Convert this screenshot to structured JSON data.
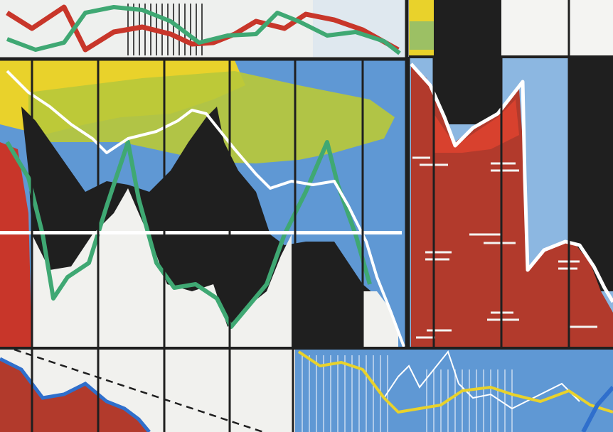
{
  "artwork": {
    "kind": "abstract painting of overlapping line and area charts",
    "palette": {
      "background_white": "#f1f1ee",
      "black": "#1f1f1f",
      "red": "#b23a2c",
      "bright_red": "#d8412e",
      "yellow": "#e9d22b",
      "yellow_green": "#b9c83a",
      "blue": "#5f98d4",
      "light_blue": "#8cb7e1",
      "green_line": "#3fa873",
      "white_line": "#ffffff"
    }
  }
}
